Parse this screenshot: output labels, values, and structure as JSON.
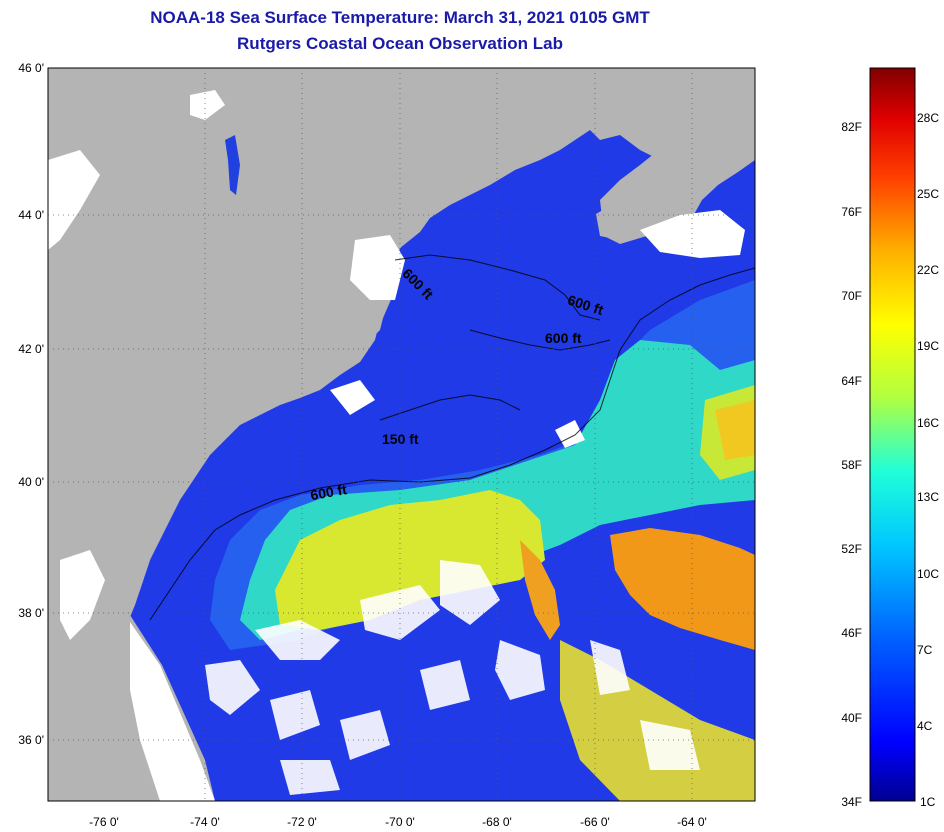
{
  "header": {
    "title": "NOAA-18 Sea Surface Temperature:  March 31, 2021 0105 GMT",
    "subtitle": "Rutgers Coastal Ocean Observation Lab"
  },
  "map": {
    "lat_labels": [
      "46 0'",
      "44 0'",
      "42 0'",
      "40 0'",
      "38 0'",
      "36 0'"
    ],
    "lon_labels": [
      "-76 0'",
      "-74 0'",
      "-72 0'",
      "-70 0'",
      "-68 0'",
      "-66 0'",
      "-64 0'"
    ],
    "contours": [
      {
        "label": "600 ft"
      },
      {
        "label": "600 ft"
      },
      {
        "label": "600 ft"
      },
      {
        "label": "150 ft"
      },
      {
        "label": "600 ft"
      }
    ],
    "colors": {
      "land": "#b4b4b4",
      "cloud": "#ffffff",
      "cold": "#1a2de0",
      "cool": "#2a7cf0",
      "mid": "#26d8d8",
      "warm": "#e0e828",
      "hot": "#f09020"
    }
  },
  "colorbar": {
    "fahrenheit_labels": [
      "82F",
      "76F",
      "70F",
      "64F",
      "58F",
      "52F",
      "46F",
      "40F",
      "34F"
    ],
    "celsius_labels": [
      "28C",
      "25C",
      "22C",
      "19C",
      "16C",
      "13C",
      "10C",
      "7C",
      "4C",
      "1C"
    ],
    "range_celsius": [
      1,
      30
    ]
  }
}
